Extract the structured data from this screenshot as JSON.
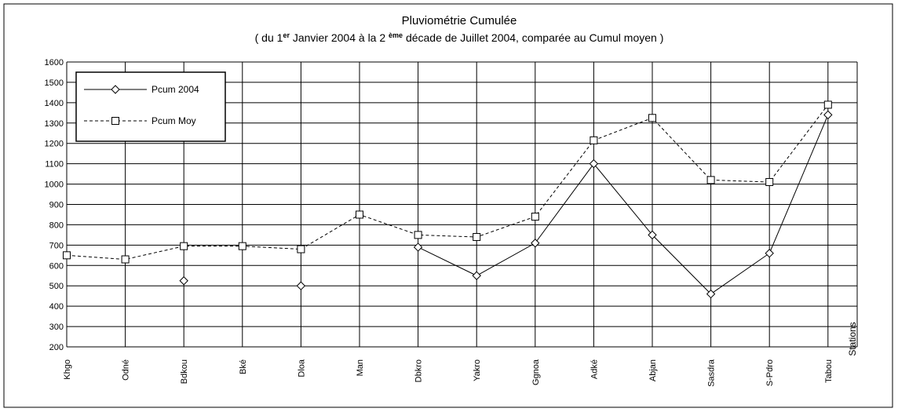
{
  "chart_data": {
    "type": "line",
    "title": "Pluviométrie Cumulée",
    "subtitle": [
      "( du 1",
      "er",
      " Janvier 2004  à  la 2 ",
      "ème",
      " décade de  Juillet  2004, comparée au Cumul moyen  )"
    ],
    "x_label": "Stations",
    "categories": [
      "Khgo",
      "Odné",
      "Bdkou",
      "Bké",
      "Dloa",
      "Man",
      "Dbkro",
      "Yakro",
      "Ggnoa",
      "Adké",
      "Abjan",
      "Sasdra",
      "S-Pdro",
      "Tabou"
    ],
    "series": [
      {
        "name": "Pcum 2004",
        "color": "#000000",
        "dash": "solid",
        "marker": "diamond",
        "values": [
          null,
          null,
          525,
          null,
          500,
          null,
          690,
          550,
          710,
          1100,
          750,
          460,
          660,
          1340
        ]
      },
      {
        "name": "Pcum Moy",
        "color": "#000000",
        "dash": "dashed",
        "marker": "square",
        "values": [
          650,
          630,
          695,
          695,
          680,
          850,
          750,
          740,
          840,
          1215,
          1325,
          1020,
          1010,
          1390
        ]
      }
    ],
    "ylim": [
      200,
      1600
    ],
    "yticks": [
      200,
      300,
      400,
      500,
      600,
      700,
      800,
      900,
      1000,
      1100,
      1200,
      1300,
      1400,
      1500,
      1600
    ],
    "grid": true,
    "legend": "top-left"
  }
}
